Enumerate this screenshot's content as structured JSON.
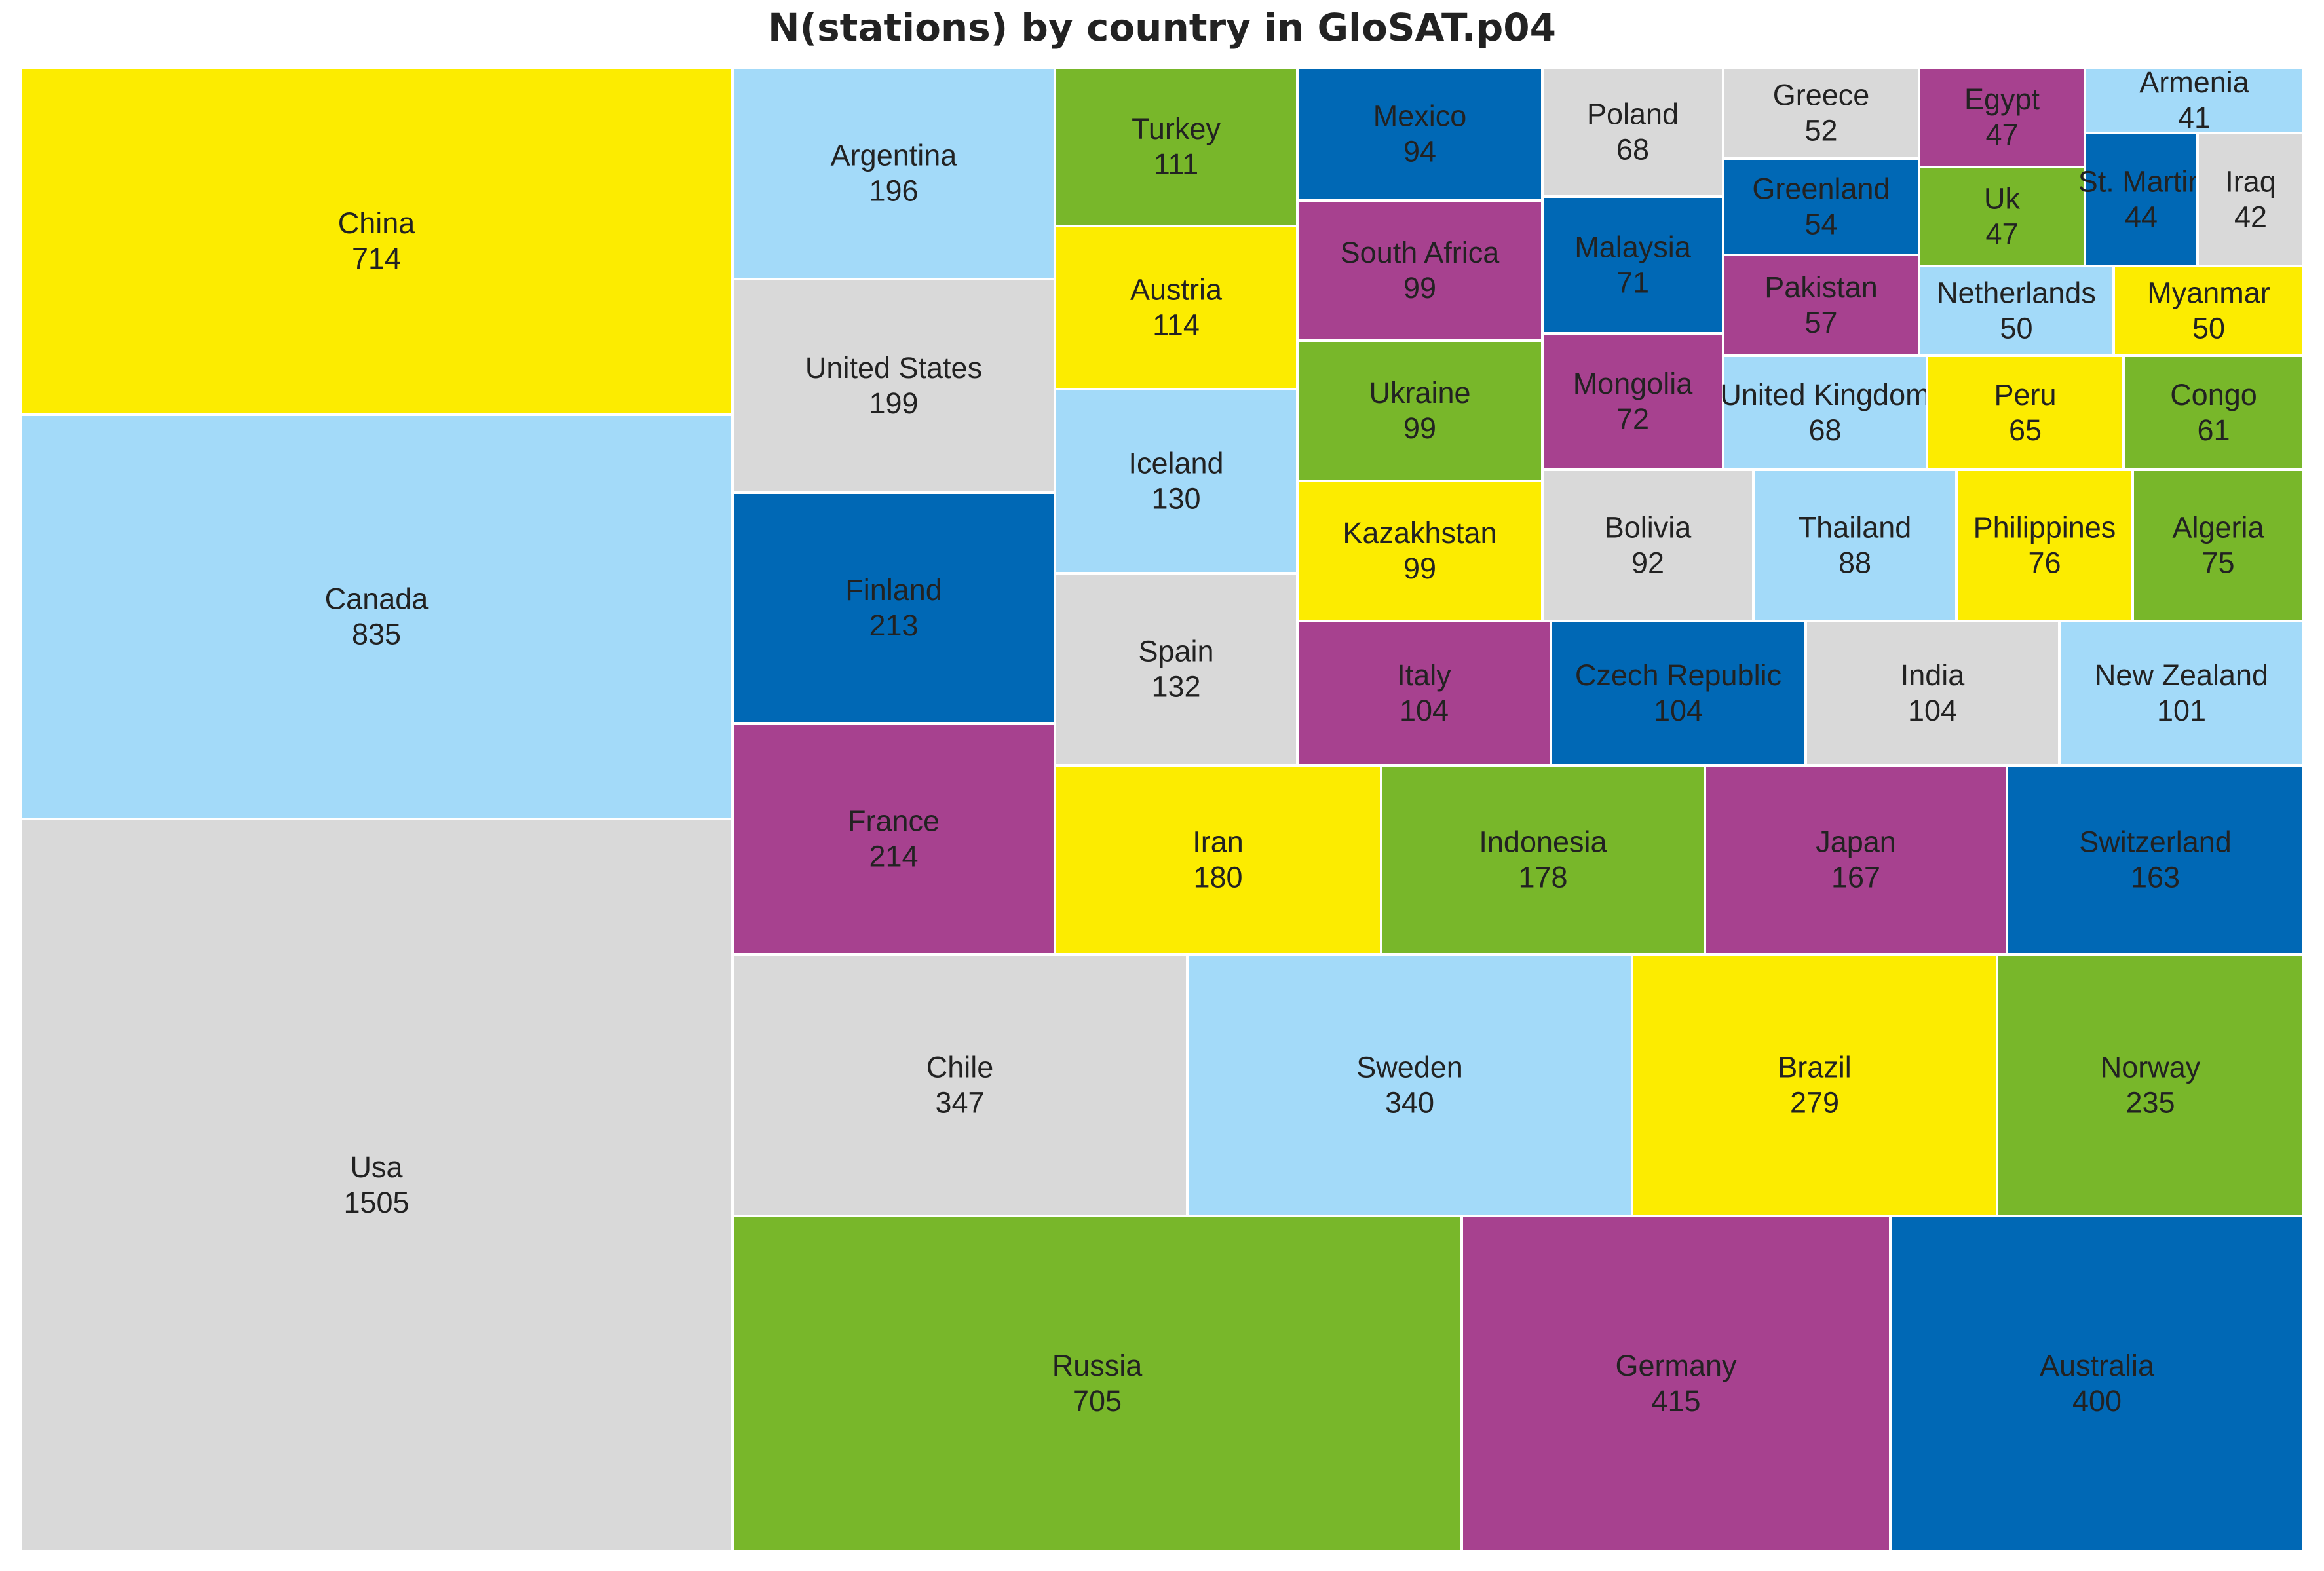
{
  "chart_data": {
    "type": "treemap",
    "title": "N(stations) by country in GloSAT.p04",
    "colors": {
      "yellow": "#fcec00",
      "lightblue": "#a3daf9",
      "grey": "#d9d9d9",
      "darkblue": "#0068b5",
      "magenta": "#a7418f",
      "green": "#78b72a"
    },
    "items": [
      {
        "name": "China",
        "value": 714,
        "color": "yellow"
      },
      {
        "name": "Canada",
        "value": 835,
        "color": "lightblue"
      },
      {
        "name": "Usa",
        "value": 1505,
        "color": "grey"
      },
      {
        "name": "Argentina",
        "value": 196,
        "color": "lightblue"
      },
      {
        "name": "United States",
        "value": 199,
        "color": "grey"
      },
      {
        "name": "Finland",
        "value": 213,
        "color": "darkblue"
      },
      {
        "name": "France",
        "value": 214,
        "color": "magenta"
      },
      {
        "name": "Turkey",
        "value": 111,
        "color": "green"
      },
      {
        "name": "Austria",
        "value": 114,
        "color": "yellow"
      },
      {
        "name": "Iceland",
        "value": 130,
        "color": "lightblue"
      },
      {
        "name": "Spain",
        "value": 132,
        "color": "grey"
      },
      {
        "name": "Mexico",
        "value": 94,
        "color": "darkblue"
      },
      {
        "name": "South Africa",
        "value": 99,
        "color": "magenta"
      },
      {
        "name": "Ukraine",
        "value": 99,
        "color": "green"
      },
      {
        "name": "Kazakhstan",
        "value": 99,
        "color": "yellow"
      },
      {
        "name": "Poland",
        "value": 68,
        "color": "grey"
      },
      {
        "name": "Malaysia",
        "value": 71,
        "color": "darkblue"
      },
      {
        "name": "Mongolia",
        "value": 72,
        "color": "magenta"
      },
      {
        "name": "Greece",
        "value": 52,
        "color": "grey"
      },
      {
        "name": "Greenland",
        "value": 54,
        "color": "darkblue"
      },
      {
        "name": "Pakistan",
        "value": 57,
        "color": "magenta"
      },
      {
        "name": "Egypt",
        "value": 47,
        "color": "magenta"
      },
      {
        "name": "Uk",
        "value": 47,
        "color": "green"
      },
      {
        "name": "Armenia",
        "value": 41,
        "color": "lightblue"
      },
      {
        "name": "St. Martin",
        "value": 44,
        "color": "darkblue"
      },
      {
        "name": "Iraq",
        "value": 42,
        "color": "grey"
      },
      {
        "name": "Netherlands",
        "value": 50,
        "color": "lightblue"
      },
      {
        "name": "Myanmar",
        "value": 50,
        "color": "yellow"
      },
      {
        "name": "United Kingdom",
        "value": 68,
        "color": "lightblue"
      },
      {
        "name": "Peru",
        "value": 65,
        "color": "yellow"
      },
      {
        "name": "Congo",
        "value": 61,
        "color": "green"
      },
      {
        "name": "Bolivia",
        "value": 92,
        "color": "grey"
      },
      {
        "name": "Thailand",
        "value": 88,
        "color": "lightblue"
      },
      {
        "name": "Philippines",
        "value": 76,
        "color": "yellow"
      },
      {
        "name": "Algeria",
        "value": 75,
        "color": "green"
      },
      {
        "name": "Italy",
        "value": 104,
        "color": "magenta"
      },
      {
        "name": "Czech Republic",
        "value": 104,
        "color": "darkblue"
      },
      {
        "name": "India",
        "value": 104,
        "color": "grey"
      },
      {
        "name": "New Zealand",
        "value": 101,
        "color": "lightblue"
      },
      {
        "name": "Iran",
        "value": 180,
        "color": "yellow"
      },
      {
        "name": "Indonesia",
        "value": 178,
        "color": "green"
      },
      {
        "name": "Japan",
        "value": 167,
        "color": "magenta"
      },
      {
        "name": "Switzerland",
        "value": 163,
        "color": "darkblue"
      },
      {
        "name": "Chile",
        "value": 347,
        "color": "grey"
      },
      {
        "name": "Sweden",
        "value": 340,
        "color": "lightblue"
      },
      {
        "name": "Brazil",
        "value": 279,
        "color": "yellow"
      },
      {
        "name": "Norway",
        "value": 235,
        "color": "green"
      },
      {
        "name": "Russia",
        "value": 705,
        "color": "green"
      },
      {
        "name": "Germany",
        "value": 415,
        "color": "magenta"
      },
      {
        "name": "Australia",
        "value": 400,
        "color": "darkblue"
      }
    ]
  }
}
